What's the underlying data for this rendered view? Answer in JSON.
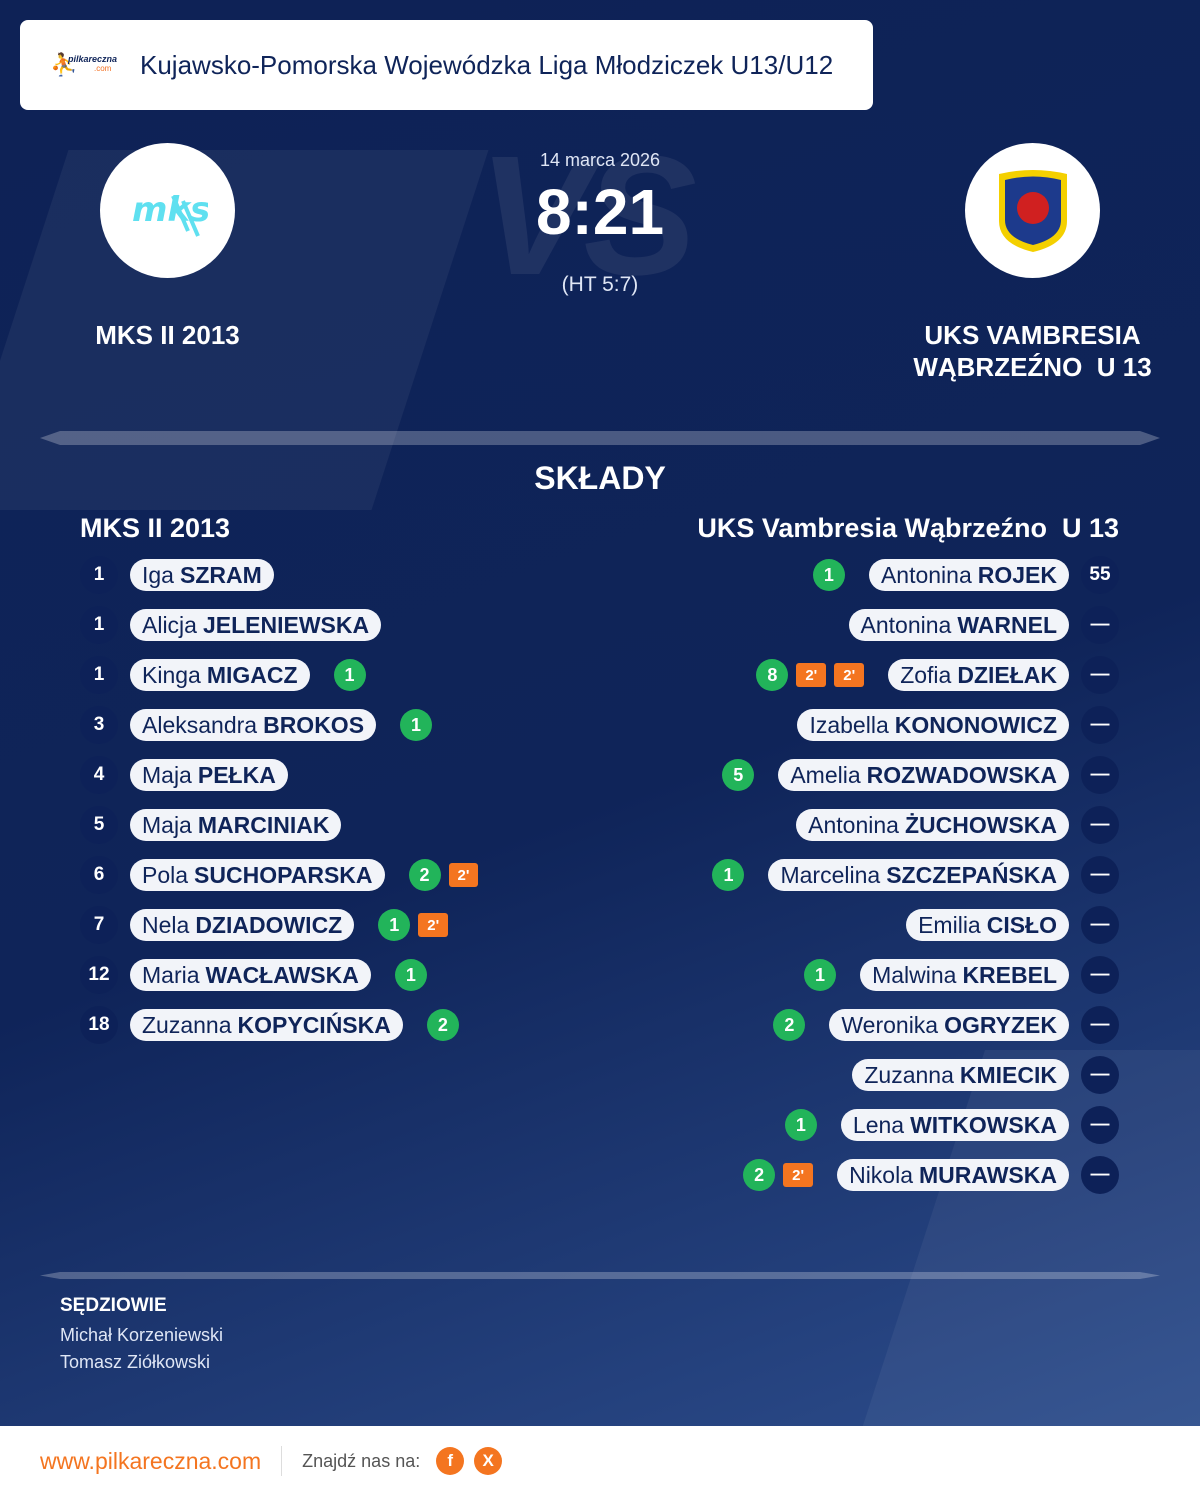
{
  "header": {
    "title": "Kujawsko-Pomorska Wojewódzka Liga Młodziczek U13/U12",
    "logo_text": "pilkareczna.com"
  },
  "match": {
    "date": "14 marca 2026",
    "score": "8:21",
    "halftime": "(HT 5:7)",
    "vs": "VS",
    "home_name": "MKS II 2013",
    "away_name_line1": "UKS VAMBRESIA",
    "away_name_line2": "WĄBRZEŹNO  U 13"
  },
  "lineups": {
    "title": "SKŁADY",
    "home_title": "MKS II 2013",
    "away_title": "UKS Vambresia Wąbrzeźno  U 13",
    "home": [
      {
        "number": "1",
        "first": "Iga",
        "last": "SZRAM",
        "goals": "",
        "penalties": []
      },
      {
        "number": "1",
        "first": "Alicja",
        "last": "JELENIEWSKA",
        "goals": "",
        "penalties": []
      },
      {
        "number": "1",
        "first": "Kinga",
        "last": "MIGACZ",
        "goals": "1",
        "penalties": []
      },
      {
        "number": "3",
        "first": "Aleksandra",
        "last": "BROKOS",
        "goals": "1",
        "penalties": []
      },
      {
        "number": "4",
        "first": "Maja",
        "last": "PEŁKA",
        "goals": "",
        "penalties": []
      },
      {
        "number": "5",
        "first": "Maja",
        "last": "MARCINIAK",
        "goals": "",
        "penalties": []
      },
      {
        "number": "6",
        "first": "Pola",
        "last": "SUCHOPARSKA",
        "goals": "2",
        "penalties": [
          "2'"
        ]
      },
      {
        "number": "7",
        "first": "Nela",
        "last": "DZIADOWICZ",
        "goals": "1",
        "penalties": [
          "2'"
        ]
      },
      {
        "number": "12",
        "first": "Maria",
        "last": "WACŁAWSKA",
        "goals": "1",
        "penalties": []
      },
      {
        "number": "18",
        "first": "Zuzanna",
        "last": "KOPYCIŃSKA",
        "goals": "2",
        "penalties": []
      }
    ],
    "away": [
      {
        "number": "55",
        "first": "Antonina",
        "last": "ROJEK",
        "goals": "1",
        "penalties": []
      },
      {
        "number": "—",
        "first": "Antonina",
        "last": "WARNEL",
        "goals": "",
        "penalties": []
      },
      {
        "number": "—",
        "first": "Zofia",
        "last": "DZIEŁAK",
        "goals": "8",
        "penalties": [
          "2'",
          "2'"
        ]
      },
      {
        "number": "—",
        "first": "Izabella",
        "last": "KONONOWICZ",
        "goals": "",
        "penalties": []
      },
      {
        "number": "—",
        "first": "Amelia",
        "last": "ROZWADOWSKA",
        "goals": "5",
        "penalties": []
      },
      {
        "number": "—",
        "first": "Antonina",
        "last": "ŻUCHOWSKA",
        "goals": "",
        "penalties": []
      },
      {
        "number": "—",
        "first": "Marcelina",
        "last": "SZCZEPAŃSKA",
        "goals": "1",
        "penalties": []
      },
      {
        "number": "—",
        "first": "Emilia",
        "last": "CISŁO",
        "goals": "",
        "penalties": []
      },
      {
        "number": "—",
        "first": "Malwina",
        "last": "KREBEL",
        "goals": "1",
        "penalties": []
      },
      {
        "number": "—",
        "first": "Weronika",
        "last": "OGRYZEK",
        "goals": "2",
        "penalties": []
      },
      {
        "number": "—",
        "first": "Zuzanna",
        "last": "KMIECIK",
        "goals": "",
        "penalties": []
      },
      {
        "number": "—",
        "first": "Lena",
        "last": "WITKOWSKA",
        "goals": "1",
        "penalties": []
      },
      {
        "number": "—",
        "first": "Nikola",
        "last": "MURAWSKA",
        "goals": "2",
        "penalties": [
          "2'"
        ]
      }
    ]
  },
  "referees": {
    "title": "SĘDZIOWIE",
    "names": [
      "Michał Korzeniewski",
      "Tomasz Ziółkowski"
    ]
  },
  "footer": {
    "url": "www.pilkareczna.com",
    "find_us": "Znajdź nas na:",
    "social": [
      {
        "icon": "facebook-icon",
        "label": "f"
      },
      {
        "icon": "x-icon",
        "label": "X"
      }
    ]
  },
  "colors": {
    "background": "#0f2459",
    "goal": "#22b45a",
    "penalty": "#f47520",
    "accent": "#f47520"
  }
}
